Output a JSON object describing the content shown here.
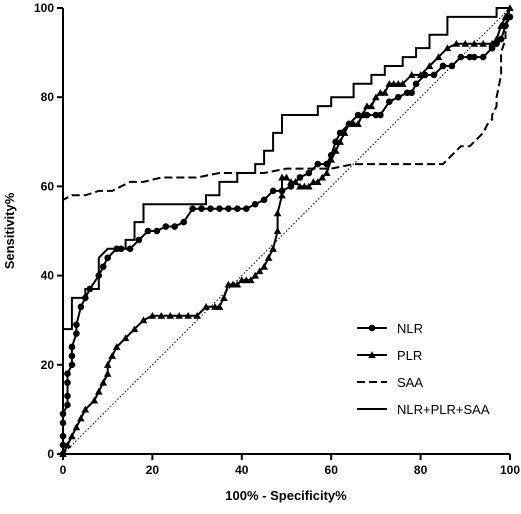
{
  "chart_data": {
    "type": "line",
    "xlabel": "100% - Specificity%",
    "ylabel": "Sensitivity%",
    "xlim": [
      0,
      100
    ],
    "ylim": [
      0,
      100
    ],
    "xticks": [
      0,
      20,
      40,
      60,
      80,
      100
    ],
    "yticks": [
      0,
      20,
      40,
      60,
      80,
      100
    ],
    "grid": false,
    "legend_position": "bottom-right",
    "reference_line": {
      "x": [
        0,
        100
      ],
      "y": [
        0,
        100
      ],
      "style": "dotted"
    },
    "series": [
      {
        "name": "NLR",
        "marker": "circle",
        "dash": "solid",
        "x": [
          0,
          0,
          0,
          0,
          0,
          1,
          1,
          1,
          1,
          2,
          2,
          2,
          3,
          3,
          4,
          5,
          6,
          8,
          9,
          10,
          12,
          13,
          15,
          17,
          19,
          21,
          23,
          25,
          27,
          29,
          31,
          33,
          35,
          37,
          39,
          41,
          43,
          45,
          47,
          49,
          51,
          53,
          55,
          57,
          59,
          60,
          61,
          62,
          64,
          66,
          68,
          70,
          71,
          73,
          75,
          77,
          78,
          79,
          81,
          83,
          85,
          87,
          89,
          91,
          92,
          94,
          96,
          97,
          98,
          99,
          100
        ],
        "y": [
          0,
          2,
          4,
          7,
          9,
          11,
          13,
          16,
          18,
          20,
          22,
          24,
          27,
          29,
          33,
          35,
          37,
          40,
          42,
          44,
          46,
          46,
          46,
          48,
          50,
          50,
          51,
          51,
          52,
          55,
          55,
          55,
          55,
          55,
          55,
          55,
          56,
          57,
          59,
          59,
          60,
          62,
          63,
          65,
          65,
          67,
          70,
          72,
          74,
          76,
          76,
          76,
          76,
          79,
          80,
          81,
          81,
          83,
          85,
          85,
          87,
          87,
          89,
          89,
          89,
          89,
          91,
          92,
          93,
          96,
          98
        ]
      },
      {
        "name": "PLR",
        "marker": "triangle",
        "dash": "solid",
        "x": [
          0,
          1,
          2,
          3,
          4,
          5,
          7,
          8,
          9,
          10,
          10,
          11,
          12,
          14,
          16,
          18,
          20,
          22,
          24,
          26,
          28,
          30,
          32,
          34,
          35,
          36,
          37,
          38,
          39,
          40,
          41,
          42,
          43,
          44,
          45,
          46,
          47,
          48,
          48,
          49,
          49,
          50,
          51,
          52,
          53,
          54,
          55,
          56,
          57,
          58,
          59,
          60,
          61,
          62,
          63,
          64,
          65,
          66,
          67,
          68,
          69,
          70,
          71,
          72,
          73,
          74,
          75,
          76,
          78,
          80,
          82,
          84,
          86,
          88,
          90,
          92,
          94,
          96,
          97,
          98,
          99,
          100
        ],
        "y": [
          0,
          2,
          4,
          6,
          8,
          10,
          12,
          14,
          16,
          18,
          20,
          22,
          24,
          26,
          28,
          30,
          31,
          31,
          31,
          31,
          31,
          31,
          33,
          33,
          33,
          35,
          38,
          38,
          38,
          39,
          39,
          39,
          40,
          41,
          42,
          44,
          46,
          50,
          54,
          58,
          62,
          62,
          61,
          61,
          60,
          60,
          60,
          61,
          61,
          62,
          63,
          66,
          68,
          70,
          72,
          74,
          74,
          74,
          76,
          78,
          78,
          80,
          81,
          81,
          83,
          83,
          83,
          83,
          85,
          85,
          87,
          89,
          91,
          92,
          92,
          92,
          92,
          92,
          93,
          96,
          98,
          100
        ]
      },
      {
        "name": "SAA",
        "marker": "none",
        "dash": "dashed",
        "x": [
          0,
          0,
          2,
          5,
          8,
          11,
          13,
          15,
          18,
          22,
          26,
          30,
          35,
          40,
          45,
          50,
          55,
          60,
          65,
          70,
          75,
          80,
          85,
          86,
          87,
          88,
          89,
          90,
          91,
          92,
          93,
          94,
          95,
          96,
          96,
          97,
          97,
          98,
          98,
          99,
          99,
          100
        ],
        "y": [
          0,
          57,
          58,
          58,
          59,
          59,
          60,
          61,
          61,
          62,
          62,
          62,
          63,
          63,
          63,
          64,
          64,
          64,
          65,
          65,
          65,
          65,
          65,
          66,
          67,
          68,
          69,
          69,
          69,
          70,
          71,
          72,
          74,
          75,
          76,
          78,
          80,
          85,
          90,
          93,
          96,
          100
        ]
      },
      {
        "name": "NLR+PLR+SAA",
        "marker": "none",
        "dash": "solid",
        "x": [
          0,
          0,
          2,
          2,
          5,
          5,
          8,
          8,
          10,
          14,
          14,
          16,
          16,
          18,
          18,
          26,
          26,
          32,
          32,
          35,
          35,
          39,
          39,
          43,
          43,
          45,
          45,
          47,
          47,
          49,
          49,
          52,
          52,
          57,
          57,
          60,
          60,
          65,
          65,
          69,
          69,
          72,
          72,
          76,
          76,
          79,
          79,
          82,
          82,
          86,
          86,
          97,
          97,
          99,
          99,
          100
        ],
        "y": [
          0,
          28,
          28,
          35,
          35,
          37,
          37,
          44,
          46,
          46,
          48,
          48,
          52,
          52,
          56,
          56,
          56,
          56,
          58,
          58,
          61,
          61,
          63,
          63,
          65,
          65,
          68,
          68,
          72,
          72,
          76,
          76,
          76,
          76,
          78,
          78,
          80,
          80,
          83,
          83,
          85,
          85,
          87,
          87,
          89,
          89,
          91,
          91,
          94,
          94,
          98,
          98,
          100,
          100,
          100,
          100
        ]
      }
    ]
  }
}
